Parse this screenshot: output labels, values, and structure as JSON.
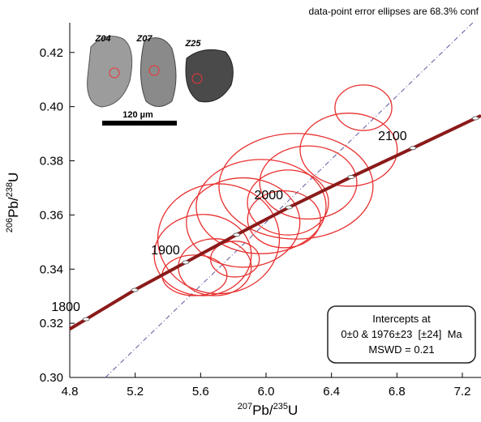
{
  "chart_data": {
    "type": "concordia",
    "note_top": "data-point error ellipses are 68.3% conf",
    "x_label": {
      "sup": "207",
      "main": "Pb/",
      "sup2": "235",
      "main2": "U"
    },
    "y_label": {
      "sup": "206",
      "main": "Pb/",
      "sup2": "238",
      "main2": "U"
    },
    "xlim": [
      4.8,
      7.314
    ],
    "ylim": [
      0.3,
      0.431
    ],
    "xticks": [
      {
        "value": 4.8,
        "label": "4.8"
      },
      {
        "value": 5.2,
        "label": "5.2"
      },
      {
        "value": 5.6,
        "label": "5.6"
      },
      {
        "value": 6,
        "label": "6.0"
      },
      {
        "value": 6.4,
        "label": "6.4"
      },
      {
        "value": 6.8,
        "label": "6.8"
      },
      {
        "value": 7.2,
        "label": "7.2"
      }
    ],
    "yticks": [
      {
        "value": 0.3,
        "label": "0.30"
      },
      0.32,
      0.34,
      0.36,
      0.38,
      {
        "value": 0.4,
        "label": "0.40"
      },
      0.42
    ],
    "concordia": {
      "color": "#8b1a1a",
      "x": [
        4.9,
        5.197,
        5.509,
        5.82,
        6.14,
        6.52,
        6.897,
        7.28
      ],
      "y": [
        0.3215,
        0.3323,
        0.3425,
        0.3527,
        0.3628,
        0.374,
        0.3847,
        0.3957
      ],
      "ages": [
        "1800",
        null,
        "1900",
        null,
        "2000",
        null,
        "2100",
        null
      ]
    },
    "discordia": {
      "color": "#5a5aa0",
      "x": [
        5.018,
        7.264
      ],
      "y": [
        0.3,
        0.431
      ]
    },
    "ellipses": {
      "color": "#e83030",
      "x": [
        6.595,
        6.505,
        6.183,
        6.258,
        5.97,
        6.134,
        5.86,
        5.71,
        5.613,
        5.687,
        5.563,
        5.81,
        6.11
      ],
      "y": [
        0.3996,
        0.3841,
        0.3706,
        0.372,
        0.3631,
        0.3646,
        0.3572,
        0.3512,
        0.3452,
        0.3407,
        0.3377,
        0.3437,
        0.3584
      ],
      "sx": [
        0.174,
        0.297,
        0.471,
        0.297,
        0.397,
        0.248,
        0.347,
        0.372,
        0.297,
        0.223,
        0.198,
        0.149,
        0.223
      ],
      "sy": [
        0.0084,
        0.0135,
        0.0195,
        0.0135,
        0.0174,
        0.012,
        0.0165,
        0.0203,
        0.015,
        0.0105,
        0.0075,
        0.0066,
        0.0105
      ]
    },
    "result_box": [
      "Intercepts at",
      "0±0 & 1976±23  [±24]  Ma",
      "MSWD = 0.21"
    ],
    "inset": {
      "grains": [
        "Z04",
        "Z07",
        "Z25"
      ],
      "scale": "120 µm"
    }
  }
}
